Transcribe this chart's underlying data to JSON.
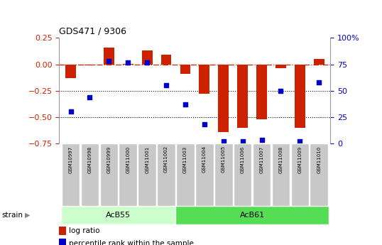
{
  "title": "GDS471 / 9306",
  "samples": [
    "GSM10997",
    "GSM10998",
    "GSM10999",
    "GSM11000",
    "GSM11001",
    "GSM11002",
    "GSM11003",
    "GSM11004",
    "GSM11005",
    "GSM11006",
    "GSM11007",
    "GSM11008",
    "GSM11009",
    "GSM11010"
  ],
  "log_ratio": [
    -0.13,
    -0.01,
    0.16,
    0.005,
    0.13,
    0.09,
    -0.09,
    -0.28,
    -0.64,
    -0.6,
    -0.52,
    -0.04,
    -0.6,
    0.05
  ],
  "percentile": [
    30,
    44,
    78,
    77,
    77,
    55,
    37,
    18,
    2,
    2,
    3,
    50,
    2,
    58
  ],
  "ylim_left": [
    -0.75,
    0.25
  ],
  "ylim_right": [
    0,
    100
  ],
  "left_yticks": [
    0.25,
    0.0,
    -0.25,
    -0.5,
    -0.75
  ],
  "right_yticks": [
    100,
    75,
    50,
    25,
    0
  ],
  "strains": [
    {
      "label": "AcB55",
      "start": 0,
      "end": 5
    },
    {
      "label": "AcB61",
      "start": 6,
      "end": 13
    }
  ],
  "strain_label": "strain",
  "bar_color": "#CC2200",
  "dot_color": "#0000CC",
  "tick_label_color_left": "#CC2200",
  "tick_label_color_right": "#0000CC",
  "legend_items": [
    "log ratio",
    "percentile rank within the sample"
  ],
  "strain_bg_color_light": "#CCFFCC",
  "strain_bg_color_dark": "#55DD55",
  "tick_bg_color": "#C8C8C8"
}
